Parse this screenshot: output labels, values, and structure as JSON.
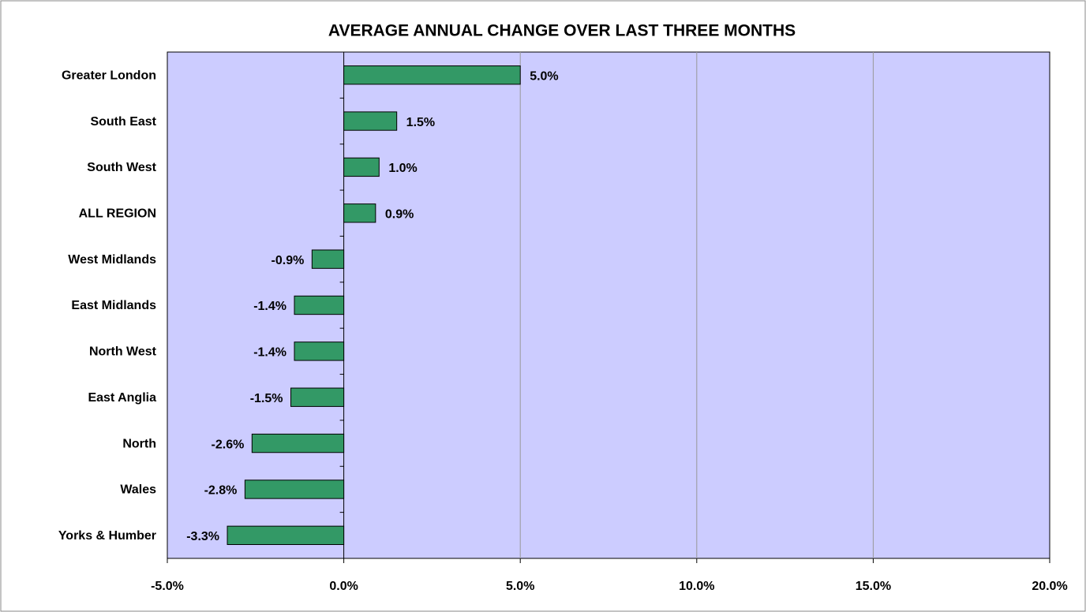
{
  "chart_data": {
    "type": "bar",
    "orientation": "horizontal",
    "title": "AVERAGE ANNUAL CHANGE OVER LAST THREE MONTHS",
    "categories": [
      "Greater London",
      "South East",
      "South West",
      "ALL REGION",
      "West Midlands",
      "East Midlands",
      "North West",
      "East Anglia",
      "North",
      "Wales",
      "Yorks & Humber"
    ],
    "values": [
      5.0,
      1.5,
      1.0,
      0.9,
      -0.9,
      -1.4,
      -1.4,
      -1.5,
      -2.6,
      -2.8,
      -3.3
    ],
    "value_labels": [
      "5.0%",
      "1.5%",
      "1.0%",
      "0.9%",
      "-0.9%",
      "-1.4%",
      "-1.4%",
      "-1.5%",
      "-2.6%",
      "-2.8%",
      "-3.3%"
    ],
    "color": "#339966",
    "background": "#ccccff",
    "xlim": [
      -5,
      20
    ],
    "xticks": [
      {
        "value": -5,
        "label": "-5.0%"
      },
      {
        "value": 0,
        "label": "0.0%"
      },
      {
        "value": 5,
        "label": "5.0%"
      },
      {
        "value": 10,
        "label": "10.0%"
      },
      {
        "value": 15,
        "label": "15.0%"
      },
      {
        "value": 20,
        "label": "20.0%"
      }
    ],
    "grid": true
  }
}
